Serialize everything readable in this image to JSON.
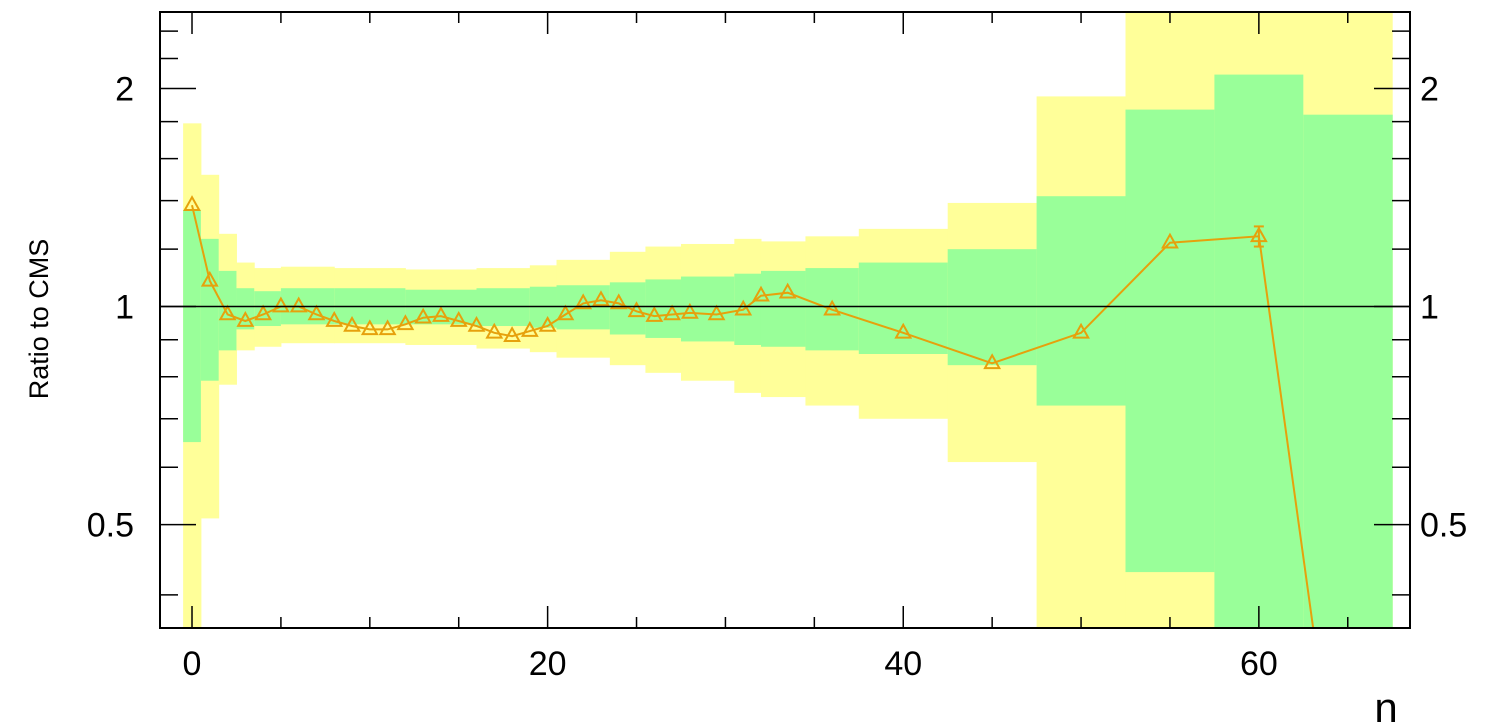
{
  "chart_data": {
    "type": "line",
    "title": "",
    "xlabel": "n",
    "ylabel": "Ratio to CMS",
    "xlim": [
      -1.8,
      68.5
    ],
    "ylim": [
      0.36,
      2.55
    ],
    "yscale": "log",
    "grid": false,
    "x_ticks": [
      0,
      20,
      40,
      60
    ],
    "y_ticks": [
      0.5,
      1,
      2
    ],
    "reference_line": 1,
    "colors": {
      "outer_band": "#ffff99",
      "inner_band": "#99ff99",
      "series": "#e6a10c",
      "axis": "#000000"
    },
    "bands": [
      {
        "x0": -0.5,
        "x1": 0.5,
        "outer_lo": 0.3,
        "outer_hi": 1.79,
        "inner_lo": 0.65,
        "inner_hi": 1.36
      },
      {
        "x0": 0.5,
        "x1": 1.5,
        "outer_lo": 0.51,
        "outer_hi": 1.52,
        "inner_lo": 0.79,
        "inner_hi": 1.24
      },
      {
        "x0": 1.5,
        "x1": 2.5,
        "outer_lo": 0.78,
        "outer_hi": 1.26,
        "inner_lo": 0.87,
        "inner_hi": 1.12
      },
      {
        "x0": 2.5,
        "x1": 3.5,
        "outer_lo": 0.87,
        "outer_hi": 1.15,
        "inner_lo": 0.93,
        "inner_hi": 1.06
      },
      {
        "x0": 3.5,
        "x1": 5.0,
        "outer_lo": 0.88,
        "outer_hi": 1.13,
        "inner_lo": 0.94,
        "inner_hi": 1.05
      },
      {
        "x0": 5.0,
        "x1": 8.0,
        "outer_lo": 0.89,
        "outer_hi": 1.135,
        "inner_lo": 0.945,
        "inner_hi": 1.06
      },
      {
        "x0": 8.0,
        "x1": 12.0,
        "outer_lo": 0.89,
        "outer_hi": 1.13,
        "inner_lo": 0.945,
        "inner_hi": 1.06
      },
      {
        "x0": 12.0,
        "x1": 16.0,
        "outer_lo": 0.885,
        "outer_hi": 1.125,
        "inner_lo": 0.945,
        "inner_hi": 1.055
      },
      {
        "x0": 16.0,
        "x1": 19.0,
        "outer_lo": 0.875,
        "outer_hi": 1.13,
        "inner_lo": 0.94,
        "inner_hi": 1.06
      },
      {
        "x0": 19.0,
        "x1": 20.5,
        "outer_lo": 0.865,
        "outer_hi": 1.14,
        "inner_lo": 0.935,
        "inner_hi": 1.065
      },
      {
        "x0": 20.5,
        "x1": 23.5,
        "outer_lo": 0.85,
        "outer_hi": 1.16,
        "inner_lo": 0.93,
        "inner_hi": 1.07
      },
      {
        "x0": 23.5,
        "x1": 25.5,
        "outer_lo": 0.83,
        "outer_hi": 1.19,
        "inner_lo": 0.915,
        "inner_hi": 1.08
      },
      {
        "x0": 25.5,
        "x1": 27.5,
        "outer_lo": 0.81,
        "outer_hi": 1.21,
        "inner_lo": 0.905,
        "inner_hi": 1.09
      },
      {
        "x0": 27.5,
        "x1": 30.5,
        "outer_lo": 0.79,
        "outer_hi": 1.22,
        "inner_lo": 0.895,
        "inner_hi": 1.1
      },
      {
        "x0": 30.5,
        "x1": 32.0,
        "outer_lo": 0.76,
        "outer_hi": 1.24,
        "inner_lo": 0.885,
        "inner_hi": 1.11
      },
      {
        "x0": 32.0,
        "x1": 34.5,
        "outer_lo": 0.75,
        "outer_hi": 1.23,
        "inner_lo": 0.88,
        "inner_hi": 1.12
      },
      {
        "x0": 34.5,
        "x1": 37.5,
        "outer_lo": 0.73,
        "outer_hi": 1.25,
        "inner_lo": 0.87,
        "inner_hi": 1.13
      },
      {
        "x0": 37.5,
        "x1": 42.5,
        "outer_lo": 0.7,
        "outer_hi": 1.28,
        "inner_lo": 0.86,
        "inner_hi": 1.15
      },
      {
        "x0": 42.5,
        "x1": 47.5,
        "outer_lo": 0.61,
        "outer_hi": 1.39,
        "inner_lo": 0.83,
        "inner_hi": 1.2
      },
      {
        "x0": 47.5,
        "x1": 52.5,
        "outer_lo": 0.3,
        "outer_hi": 1.95,
        "inner_lo": 0.73,
        "inner_hi": 1.42
      },
      {
        "x0": 52.5,
        "x1": 57.5,
        "outer_lo": 0.3,
        "outer_hi": 2.6,
        "inner_lo": 0.43,
        "inner_hi": 1.87
      },
      {
        "x0": 57.5,
        "x1": 62.5,
        "outer_lo": 0.3,
        "outer_hi": 2.6,
        "inner_lo": 0.3,
        "inner_hi": 2.09
      },
      {
        "x0": 62.5,
        "x1": 67.5,
        "outer_lo": 0.3,
        "outer_hi": 2.6,
        "inner_lo": 0.3,
        "inner_hi": 1.84
      }
    ],
    "series": [
      {
        "x": [
          0,
          1,
          2,
          3,
          4,
          5,
          6,
          7,
          8,
          9,
          10,
          11,
          12,
          13,
          14,
          15,
          16,
          17,
          18,
          19,
          20,
          21,
          22,
          23,
          24,
          25,
          26,
          27,
          28,
          29.5,
          31,
          32,
          33.5,
          36,
          40,
          45,
          50,
          55,
          60,
          63.5
        ],
        "y": [
          1.38,
          1.085,
          0.975,
          0.955,
          0.975,
          1.0,
          1.0,
          0.975,
          0.955,
          0.94,
          0.93,
          0.93,
          0.945,
          0.965,
          0.97,
          0.955,
          0.94,
          0.92,
          0.91,
          0.925,
          0.94,
          0.975,
          1.01,
          1.02,
          1.01,
          0.985,
          0.97,
          0.975,
          0.98,
          0.975,
          0.99,
          1.035,
          1.045,
          0.99,
          0.92,
          0.835,
          0.92,
          1.225,
          1.25,
          0.3
        ],
        "markers": [
          true,
          true,
          true,
          true,
          true,
          true,
          true,
          true,
          true,
          true,
          true,
          true,
          true,
          true,
          true,
          true,
          true,
          true,
          true,
          true,
          true,
          true,
          true,
          true,
          true,
          true,
          true,
          true,
          true,
          true,
          true,
          true,
          true,
          true,
          true,
          true,
          true,
          true,
          true,
          false
        ],
        "error_bars": [
          {
            "x": 60,
            "lo": 1.21,
            "hi": 1.29
          }
        ]
      }
    ]
  }
}
